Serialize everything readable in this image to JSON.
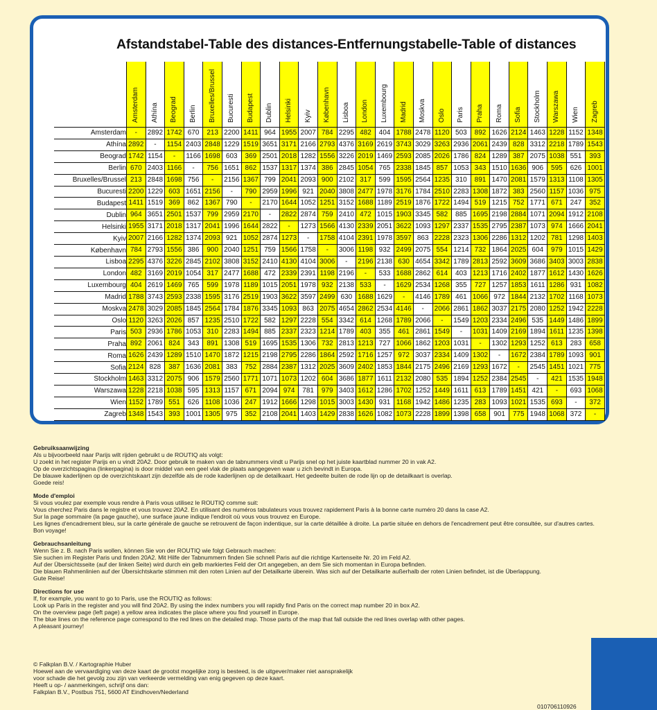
{
  "title": "Afstandstabel-Table des distances-Entfernungstabelle-Table of distances",
  "colors": {
    "highlight": "#ffff00",
    "frame": "#1a5fb4",
    "page": "#fdf5cf"
  },
  "cities": [
    "Amsterdam",
    "Athína",
    "Beograd",
    "Berlin",
    "Bruxelles/Brussel",
    "Bucuresti",
    "Budapest",
    "Dublin",
    "Helsinki",
    "Kyiv",
    "København",
    "Lisboa",
    "London",
    "Luxembourg",
    "Madrid",
    "Moskva",
    "Oslo",
    "Paris",
    "Praha",
    "Roma",
    "Sofia",
    "Stockholm",
    "Warszawa",
    "Wien",
    "Zagreb"
  ],
  "highlighted_columns": [
    0,
    2,
    4,
    6,
    8,
    10,
    12,
    14,
    16,
    18,
    20,
    22,
    24
  ],
  "distances": [
    [
      "-",
      "2892",
      "1742",
      "670",
      "213",
      "2200",
      "1411",
      "964",
      "1955",
      "2007",
      "784",
      "2295",
      "482",
      "404",
      "1788",
      "2478",
      "1120",
      "503",
      "892",
      "1626",
      "2124",
      "1463",
      "1228",
      "1152",
      "1348"
    ],
    [
      "2892",
      "-",
      "1154",
      "2403",
      "2848",
      "1229",
      "1519",
      "3651",
      "3171",
      "2166",
      "2793",
      "4376",
      "3169",
      "2619",
      "3743",
      "3029",
      "3263",
      "2936",
      "2061",
      "2439",
      "828",
      "3312",
      "2218",
      "1789",
      "1543"
    ],
    [
      "1742",
      "1154",
      "-",
      "1166",
      "1698",
      "603",
      "369",
      "2501",
      "2018",
      "1282",
      "1556",
      "3226",
      "2019",
      "1469",
      "2593",
      "2085",
      "2026",
      "1786",
      "824",
      "1289",
      "387",
      "2075",
      "1038",
      "551",
      "393"
    ],
    [
      "670",
      "2403",
      "1166",
      "-",
      "756",
      "1651",
      "862",
      "1537",
      "1317",
      "1374",
      "386",
      "2845",
      "1054",
      "765",
      "2338",
      "1845",
      "857",
      "1053",
      "343",
      "1510",
      "1636",
      "906",
      "595",
      "626",
      "1001"
    ],
    [
      "213",
      "2848",
      "1698",
      "756",
      "-",
      "2156",
      "1367",
      "799",
      "2041",
      "2093",
      "900",
      "2102",
      "317",
      "599",
      "1595",
      "2564",
      "1235",
      "310",
      "891",
      "1470",
      "2081",
      "1579",
      "1313",
      "1108",
      "1305"
    ],
    [
      "2200",
      "1229",
      "603",
      "1651",
      "2156",
      "-",
      "790",
      "2959",
      "1996",
      "921",
      "2040",
      "3808",
      "2477",
      "1978",
      "3176",
      "1784",
      "2510",
      "2283",
      "1308",
      "1872",
      "383",
      "2560",
      "1157",
      "1036",
      "975"
    ],
    [
      "1411",
      "1519",
      "369",
      "862",
      "1367",
      "790",
      "-",
      "2170",
      "1644",
      "1052",
      "1251",
      "3152",
      "1688",
      "1189",
      "2519",
      "1876",
      "1722",
      "1494",
      "519",
      "1215",
      "752",
      "1771",
      "671",
      "247",
      "352"
    ],
    [
      "964",
      "3651",
      "2501",
      "1537",
      "799",
      "2959",
      "2170",
      "-",
      "2822",
      "2874",
      "759",
      "2410",
      "472",
      "1015",
      "1903",
      "3345",
      "582",
      "885",
      "1695",
      "2198",
      "2884",
      "1071",
      "2094",
      "1912",
      "2108"
    ],
    [
      "1955",
      "3171",
      "2018",
      "1317",
      "2041",
      "1996",
      "1644",
      "2822",
      "-",
      "1273",
      "1566",
      "4130",
      "2339",
      "2051",
      "3622",
      "1093",
      "1297",
      "2337",
      "1535",
      "2795",
      "2387",
      "1073",
      "974",
      "1666",
      "2041"
    ],
    [
      "2007",
      "2166",
      "1282",
      "1374",
      "2093",
      "921",
      "1052",
      "2874",
      "1273",
      "-",
      "1758",
      "4104",
      "2391",
      "1978",
      "3597",
      "863",
      "2228",
      "2323",
      "1306",
      "2286",
      "1312",
      "1202",
      "781",
      "1298",
      "1403"
    ],
    [
      "784",
      "2793",
      "1556",
      "386",
      "900",
      "2040",
      "1251",
      "759",
      "1566",
      "1758",
      "-",
      "3006",
      "1198",
      "932",
      "2499",
      "2075",
      "554",
      "1214",
      "732",
      "1864",
      "2025",
      "604",
      "979",
      "1015",
      "1429"
    ],
    [
      "2295",
      "4376",
      "3226",
      "2845",
      "2102",
      "3808",
      "3152",
      "2410",
      "4130",
      "4104",
      "3006",
      "-",
      "2196",
      "2138",
      "630",
      "4654",
      "3342",
      "1789",
      "2813",
      "2592",
      "3609",
      "3686",
      "3403",
      "3003",
      "2838"
    ],
    [
      "482",
      "3169",
      "2019",
      "1054",
      "317",
      "2477",
      "1688",
      "472",
      "2339",
      "2391",
      "1198",
      "2196",
      "-",
      "533",
      "1688",
      "2862",
      "614",
      "403",
      "1213",
      "1716",
      "2402",
      "1877",
      "1612",
      "1430",
      "1626"
    ],
    [
      "404",
      "2619",
      "1469",
      "765",
      "599",
      "1978",
      "1189",
      "1015",
      "2051",
      "1978",
      "932",
      "2138",
      "533",
      "-",
      "1629",
      "2534",
      "1268",
      "355",
      "727",
      "1257",
      "1853",
      "1611",
      "1286",
      "931",
      "1082"
    ],
    [
      "1788",
      "3743",
      "2593",
      "2338",
      "1595",
      "3176",
      "2519",
      "1903",
      "3622",
      "3597",
      "2499",
      "630",
      "1688",
      "1629",
      "-",
      "4146",
      "1789",
      "461",
      "1066",
      "972",
      "1844",
      "2132",
      "1702",
      "1168",
      "1073"
    ],
    [
      "2478",
      "3029",
      "2085",
      "1845",
      "2564",
      "1784",
      "1876",
      "3345",
      "1093",
      "863",
      "2075",
      "4654",
      "2862",
      "2534",
      "4146",
      "-",
      "2066",
      "2861",
      "1862",
      "3037",
      "2175",
      "2080",
      "1252",
      "1942",
      "2228"
    ],
    [
      "1120",
      "3263",
      "2026",
      "857",
      "1235",
      "2510",
      "1722",
      "582",
      "1297",
      "2228",
      "554",
      "3342",
      "614",
      "1268",
      "1789",
      "2066",
      "-",
      "1549",
      "1203",
      "2334",
      "2496",
      "535",
      "1449",
      "1486",
      "1899"
    ],
    [
      "503",
      "2936",
      "1786",
      "1053",
      "310",
      "2283",
      "1494",
      "885",
      "2337",
      "2323",
      "1214",
      "1789",
      "403",
      "355",
      "461",
      "2861",
      "1549",
      "-",
      "1031",
      "1409",
      "2169",
      "1894",
      "1611",
      "1235",
      "1398"
    ],
    [
      "892",
      "2061",
      "824",
      "343",
      "891",
      "1308",
      "519",
      "1695",
      "1535",
      "1306",
      "732",
      "2813",
      "1213",
      "727",
      "1066",
      "1862",
      "1203",
      "1031",
      "-",
      "1302",
      "1293",
      "1252",
      "613",
      "283",
      "658"
    ],
    [
      "1626",
      "2439",
      "1289",
      "1510",
      "1470",
      "1872",
      "1215",
      "2198",
      "2795",
      "2286",
      "1864",
      "2592",
      "1716",
      "1257",
      "972",
      "3037",
      "2334",
      "1409",
      "1302",
      "-",
      "1672",
      "2384",
      "1789",
      "1093",
      "901"
    ],
    [
      "2124",
      "828",
      "387",
      "1636",
      "2081",
      "383",
      "752",
      "2884",
      "2387",
      "1312",
      "2025",
      "3609",
      "2402",
      "1853",
      "1844",
      "2175",
      "2496",
      "2169",
      "1293",
      "1672",
      "-",
      "2545",
      "1451",
      "1021",
      "775"
    ],
    [
      "1463",
      "3312",
      "2075",
      "906",
      "1579",
      "2560",
      "1771",
      "1071",
      "1073",
      "1202",
      "604",
      "3686",
      "1877",
      "1611",
      "2132",
      "2080",
      "535",
      "1894",
      "1252",
      "2384",
      "2545",
      "-",
      "421",
      "1535",
      "1948"
    ],
    [
      "1228",
      "2218",
      "1038",
      "595",
      "1313",
      "1157",
      "671",
      "2094",
      "974",
      "781",
      "979",
      "3403",
      "1612",
      "1286",
      "1702",
      "1252",
      "1449",
      "1611",
      "613",
      "1789",
      "1451",
      "421",
      "-",
      "693",
      "1068"
    ],
    [
      "1152",
      "1789",
      "551",
      "626",
      "1108",
      "1036",
      "247",
      "1912",
      "1666",
      "1298",
      "1015",
      "3003",
      "1430",
      "931",
      "1168",
      "1942",
      "1486",
      "1235",
      "283",
      "1093",
      "1021",
      "1535",
      "693",
      "-",
      "372"
    ],
    [
      "1348",
      "1543",
      "393",
      "1001",
      "1305",
      "975",
      "352",
      "2108",
      "2041",
      "1403",
      "1429",
      "2838",
      "1626",
      "1082",
      "1073",
      "2228",
      "1899",
      "1398",
      "658",
      "901",
      "775",
      "1948",
      "1068",
      "372",
      "-"
    ]
  ],
  "instructions": [
    {
      "heading": "Gebruiksaanwijzing",
      "lines": [
        "Als u bijvoorbeeld naar Parijs wilt rijden gebruikt u de ROUTIQ als volgt:",
        "U zoekt in het register Parijs en u vindt 20A2. Door gebruik te maken van de tabnummers vindt u Parijs snel op het juiste kaartblad nummer 20 in vak A2.",
        "Op de overzichtspagina (linkerpagina) is door middel van een geel vlak de plaats aangegeven waar u zich bevindt in Europa.",
        "De blauwe kaderlijnen op de overzichtskaart zijn dezelfde als de rode kaderlijnen op de detailkaart. Het gedeelte buiten de rode lijn op de detailkaart is overlap.",
        "Goede reis!"
      ]
    },
    {
      "heading": "Mode d'emploi",
      "lines": [
        "Si vous voulez par exemple vous rendre à Paris vous utilisez le ROUTIQ comme suit:",
        "Vous cherchez Paris dans le registre et vous trouvez 20A2. En utilisant des numéros tabulateurs vous trouvez rapidement Paris à la bonne carte numéro 20 dans la case A2.",
        "Sur la page sommaire (la page gauche), une surface jaune indique l'endroit où vous vous trouvez en Europe.",
        "Les lignes d'encadrement bleu, sur la carte générale de gauche se retrouvent de façon indentique, sur la carte détaillée à droite. La partie située en dehors de l'encadrement peut être consultée, sur d'autres cartes.",
        "Bon voyage!"
      ]
    },
    {
      "heading": "Gebrauchsanleitung",
      "lines": [
        "Wenn Sie z. B. nach Paris wollen, können Sie von der ROUTIQ wie folgt Gebrauch machen:",
        "Sie suchen im Register Paris und finden 20A2. Mit Hilfe der Tabnummern finden Sie schnell Paris auf die richtige Kartenseite Nr. 20 im Feld A2.",
        "Auf der Übersichtsseite (auf der linken Seite) wird durch ein gelb markiertes Feld der Ort angegeben, an dem Sie sich momentan in Europa befinden.",
        "Die blauen Rahmenlinien auf der Übersichtskarte stimmen mit den roten Linien auf der Detailkarte überein. Was sich auf der Detailkarte außerhalb der roten Linien befindet, ist die Überlappung.",
        "Gute Reise!"
      ]
    },
    {
      "heading": "Directions for use",
      "lines": [
        "If, for example, you want to go to Paris, use the ROUTIQ as follows:",
        "Look up Paris in the register and you will find 20A2. By using the index numbers you will rapidly find Paris on the correct map number 20 in box A2.",
        "On the overview page (left page) a yellow area indicates the place where you find yourself in Europe.",
        "The blue lines on the reference page correspond to the red lines on the detailed map. Those parts of the map that fall outside the red lines overlap with other pages.",
        "A pleasant journey!"
      ]
    }
  ],
  "footer": [
    "© Falkplan B.V. / Kartographie Huber",
    "Hoewel aan de vervaardiging van deze kaart de grootst mogelijke zorg is besteed, is de uitgever/maker niet aansprakelijk",
    "voor schade die het gevolg zou zijn van verkeerde vermelding van enig gegeven op deze kaart.",
    "Heeft u op- / aanmerkingen, schrijf ons dan:",
    "Falkplan B.V., Postbus 751, 5600 AT Eindhoven/Nederland"
  ],
  "product_code": "010706110926"
}
